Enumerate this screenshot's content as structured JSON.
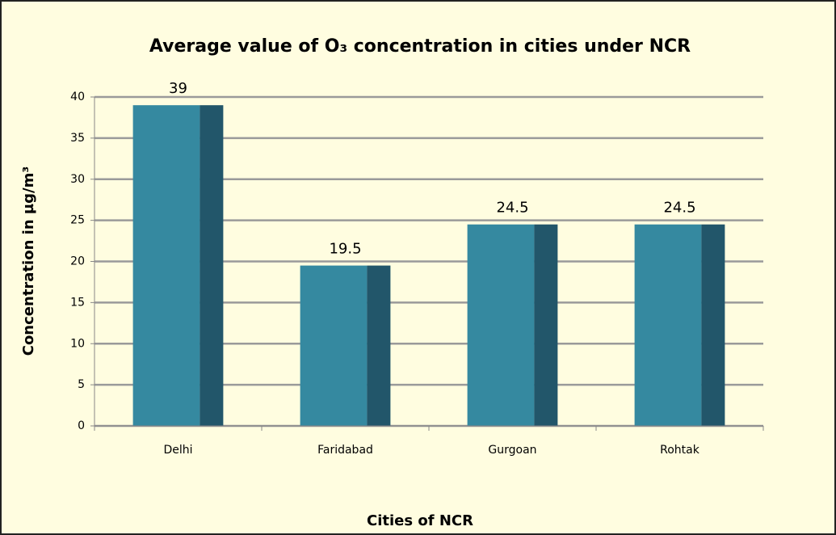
{
  "chart_data": {
    "type": "bar",
    "title": "Average value of O₃ concentration in cities under NCR",
    "x_label": "Cities of NCR",
    "y_label": "Concentration in µg/m³",
    "categories": [
      "Delhi",
      "Faridabad",
      "Gurgoan",
      "Rohtak"
    ],
    "values": [
      39,
      19.5,
      24.5,
      24.5
    ],
    "color": "#3589a0",
    "ylim": [
      0,
      40
    ],
    "yticks": [
      0,
      5,
      10,
      15,
      20,
      25,
      30,
      35,
      40
    ],
    "grid": true
  }
}
